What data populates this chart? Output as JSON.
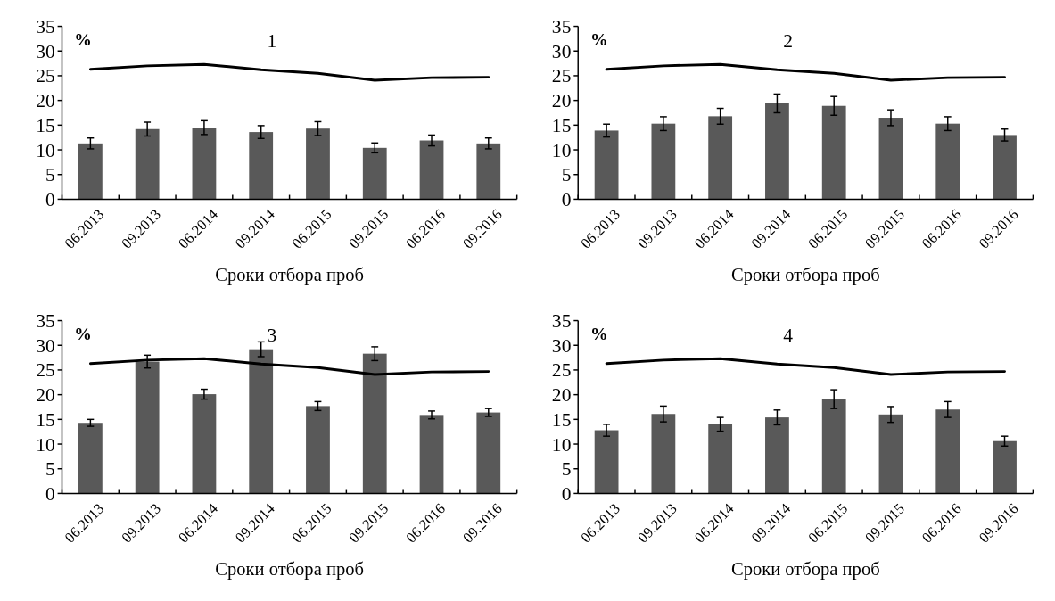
{
  "chart_data": [
    {
      "type": "bar",
      "title": "1",
      "ylabel": "%",
      "xlabel": "Сроки отбора проб",
      "categories": [
        "06.2013",
        "09.2013",
        "06.2014",
        "09.2014",
        "06.2015",
        "09.2015",
        "06.2016",
        "09.2016"
      ],
      "ylim": [
        0,
        35
      ],
      "yticks": [
        0,
        5,
        10,
        15,
        20,
        25,
        30,
        35
      ],
      "grid": false,
      "series": [
        {
          "color": "#595959",
          "values": [
            11.3,
            14.2,
            14.5,
            13.6,
            14.3,
            10.4,
            11.9,
            11.3
          ],
          "errors": [
            1.1,
            1.4,
            1.4,
            1.3,
            1.4,
            1.0,
            1.1,
            1.1
          ]
        },
        {
          "type": "line",
          "color": "#000000",
          "values": [
            26.3,
            27.0,
            27.3,
            26.2,
            25.5,
            24.1,
            24.6,
            24.7
          ]
        }
      ]
    },
    {
      "type": "bar",
      "title": "2",
      "ylabel": "%",
      "xlabel": "Сроки отбора проб",
      "categories": [
        "06.2013",
        "09.2013",
        "06.2014",
        "09.2014",
        "06.2015",
        "09.2015",
        "06.2016",
        "09.2016"
      ],
      "ylim": [
        0,
        35
      ],
      "yticks": [
        0,
        5,
        10,
        15,
        20,
        25,
        30,
        35
      ],
      "grid": false,
      "series": [
        {
          "color": "#595959",
          "values": [
            13.9,
            15.3,
            16.8,
            19.4,
            18.9,
            16.5,
            15.3,
            13.0
          ],
          "errors": [
            1.3,
            1.4,
            1.6,
            1.9,
            1.9,
            1.6,
            1.4,
            1.2
          ]
        },
        {
          "type": "line",
          "color": "#000000",
          "values": [
            26.3,
            27.0,
            27.3,
            26.2,
            25.5,
            24.1,
            24.6,
            24.7
          ]
        }
      ]
    },
    {
      "type": "bar",
      "title": "3",
      "ylabel": "%",
      "xlabel": "Сроки отбора проб",
      "categories": [
        "06.2013",
        "09.2013",
        "06.2014",
        "09.2014",
        "06.2015",
        "09.2015",
        "06.2016",
        "09.2016"
      ],
      "ylim": [
        0,
        35
      ],
      "yticks": [
        0,
        5,
        10,
        15,
        20,
        25,
        30,
        35
      ],
      "grid": false,
      "series": [
        {
          "color": "#595959",
          "values": [
            14.3,
            26.7,
            20.1,
            29.2,
            17.7,
            28.3,
            15.9,
            16.4
          ],
          "errors": [
            0.7,
            1.3,
            1.0,
            1.5,
            0.9,
            1.4,
            0.8,
            0.8
          ]
        },
        {
          "type": "line",
          "color": "#000000",
          "values": [
            26.3,
            27.0,
            27.3,
            26.2,
            25.5,
            24.1,
            24.6,
            24.7
          ]
        }
      ]
    },
    {
      "type": "bar",
      "title": "4",
      "ylabel": "%",
      "xlabel": "Сроки отбора проб",
      "categories": [
        "06.2013",
        "09.2013",
        "06.2014",
        "09.2014",
        "06.2015",
        "09.2015",
        "06.2016",
        "09.2016"
      ],
      "ylim": [
        0,
        35
      ],
      "yticks": [
        0,
        5,
        10,
        15,
        20,
        25,
        30,
        35
      ],
      "grid": false,
      "series": [
        {
          "color": "#595959",
          "values": [
            12.8,
            16.1,
            14.0,
            15.4,
            19.1,
            16.0,
            17.0,
            10.6
          ],
          "errors": [
            1.2,
            1.6,
            1.4,
            1.5,
            1.9,
            1.6,
            1.6,
            1.0
          ]
        },
        {
          "type": "line",
          "color": "#000000",
          "values": [
            26.3,
            27.0,
            27.3,
            26.2,
            25.5,
            24.1,
            24.6,
            24.7
          ]
        }
      ]
    }
  ]
}
